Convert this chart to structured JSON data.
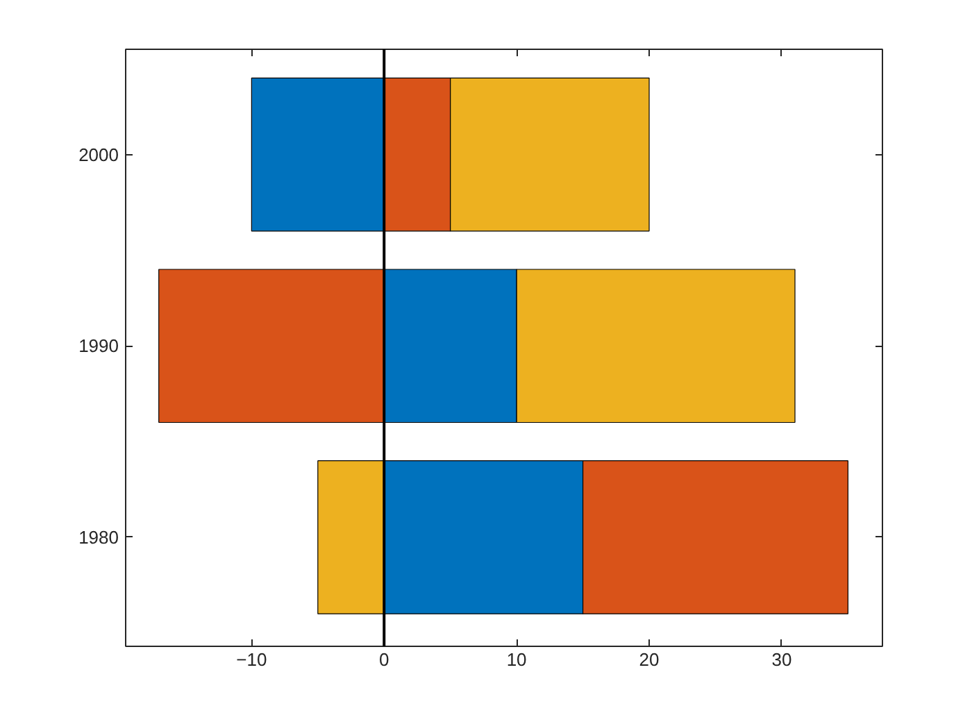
{
  "chart_data": {
    "type": "bar",
    "orientation": "horizontal",
    "stacked": true,
    "categories": [
      "2000",
      "1990",
      "1980"
    ],
    "series": [
      {
        "color": "#0072bd",
        "values": [
          -10,
          10,
          15
        ]
      },
      {
        "color": "#d95319",
        "values": [
          5,
          -17,
          20
        ]
      },
      {
        "color": "#edb120",
        "values": [
          15,
          21,
          -5
        ]
      }
    ],
    "xlim": [
      -19.5,
      37.6
    ],
    "xticks": [
      -10,
      0,
      10,
      20,
      30
    ],
    "ref_lines": [
      {
        "axis": "x",
        "value": 0,
        "color": "#000000"
      }
    ],
    "grid": false
  }
}
